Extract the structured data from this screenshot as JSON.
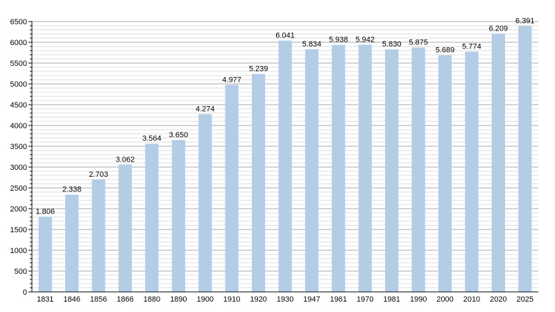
{
  "chart_data": {
    "type": "bar",
    "categories": [
      "1831",
      "1846",
      "1856",
      "1866",
      "1880",
      "1890",
      "1900",
      "1910",
      "1920",
      "1930",
      "1947",
      "1961",
      "1970",
      "1981",
      "1990",
      "2000",
      "2010",
      "2020",
      "2025"
    ],
    "values": [
      1806,
      2338,
      2703,
      3062,
      3564,
      3650,
      4274,
      4977,
      5239,
      6041,
      5834,
      5938,
      5942,
      5830,
      5875,
      5689,
      5774,
      6209,
      6391
    ],
    "value_labels": [
      "1.806",
      "2.338",
      "2.703",
      "3.062",
      "3.564",
      "3.650",
      "4.274",
      "4.977",
      "5.239",
      "6.041",
      "5.834",
      "5.938",
      "5.942",
      "5.830",
      "5.875",
      "5.689",
      "5.774",
      "6.209",
      "6.391"
    ],
    "yticks": [
      0,
      500,
      1000,
      1500,
      2000,
      2500,
      3000,
      3500,
      4000,
      4500,
      5000,
      5500,
      6000,
      6500
    ],
    "ylim": [
      0,
      6500
    ],
    "title": "",
    "xlabel": "",
    "ylabel": "",
    "grid": true,
    "legend": "none",
    "colors": {
      "bar": "#b3cde6",
      "grid_major": "#a9a9a9",
      "grid_minor": "#dcdcdc",
      "axis": "#000000"
    }
  }
}
